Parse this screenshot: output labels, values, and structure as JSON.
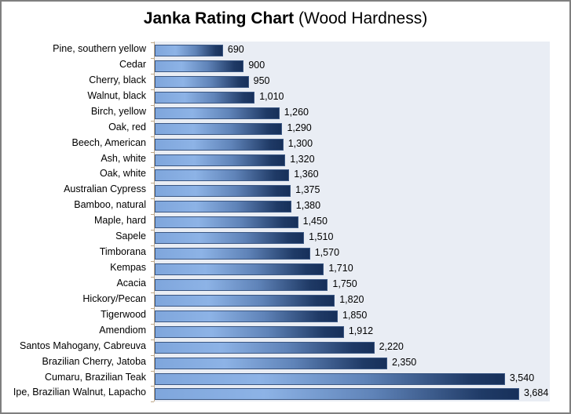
{
  "chart_data": {
    "type": "bar",
    "orientation": "horizontal",
    "title": "Janka Rating Chart (Wood Hardness)",
    "title_bold": "Janka Rating Chart",
    "title_regular": "(Wood Hardness)",
    "xlabel": "",
    "ylabel": "",
    "xlim": [
      0,
      4000
    ],
    "grid": false,
    "legend": null,
    "categories": [
      "Pine, southern yellow",
      "Cedar",
      "Cherry, black",
      "Walnut, black",
      "Birch, yellow",
      "Oak, red",
      "Beech, American",
      "Ash, white",
      "Oak, white",
      "Australian Cypress",
      "Bamboo, natural",
      "Maple, hard",
      "Sapele",
      "Timborana",
      "Kempas",
      "Acacia",
      "Hickory/Pecan",
      "Tigerwood",
      "Amendiom",
      "Santos Mahogany, Cabreuva",
      "Brazilian Cherry, Jatoba",
      "Cumaru, Brazilian Teak",
      "Ipe, Brazilian Walnut, Lapacho"
    ],
    "values": [
      690,
      900,
      950,
      1010,
      1260,
      1290,
      1300,
      1320,
      1360,
      1375,
      1380,
      1450,
      1510,
      1570,
      1710,
      1750,
      1820,
      1850,
      1912,
      2220,
      2350,
      3540,
      3684
    ],
    "value_labels": [
      "690",
      "900",
      "950",
      "1,010",
      "1,260",
      "1,290",
      "1,300",
      "1,320",
      "1,360",
      "1,375",
      "1,380",
      "1,450",
      "1,510",
      "1,570",
      "1,710",
      "1,750",
      "1,820",
      "1,850",
      "1,912",
      "2,220",
      "2,350",
      "3,540",
      "3,684"
    ],
    "colors": {
      "bar_light": "#8db3e6",
      "bar_dark": "#17305a",
      "plot_bg": "#e9edf4"
    }
  }
}
